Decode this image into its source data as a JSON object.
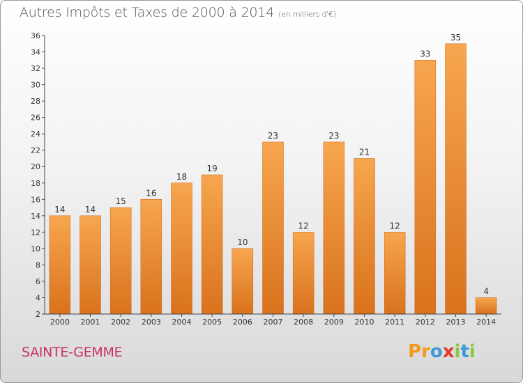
{
  "header": {
    "title": "Autres Impôts et Taxes de 2000 à 2014",
    "unit": "(en milliers d'€)"
  },
  "footer": {
    "city": "SAINTE-GEMME",
    "logo_text": "Proxiti"
  },
  "colors": {
    "bar_light": "#f7a64f",
    "bar_dark": "#d9721c",
    "city_text": "#c8325f",
    "logo": [
      "#f29a1f",
      "#f29a1f",
      "#3a9ad9",
      "#e23a2a",
      "#8cc63e",
      "#3a9ad9",
      "#8cc63e"
    ]
  },
  "chart_data": {
    "type": "bar",
    "title": "Autres Impôts et Taxes de 2000 à 2014",
    "xlabel": "",
    "ylabel": "",
    "ylim": [
      2,
      36
    ],
    "yticks": [
      2,
      4,
      6,
      8,
      10,
      12,
      14,
      16,
      18,
      20,
      22,
      24,
      26,
      28,
      30,
      32,
      34,
      36
    ],
    "grid": false,
    "categories": [
      "2000",
      "2001",
      "2002",
      "2003",
      "2004",
      "2005",
      "2006",
      "2007",
      "2008",
      "2009",
      "2010",
      "2011",
      "2012",
      "2013",
      "2014"
    ],
    "values": [
      14,
      14,
      15,
      16,
      18,
      19,
      10,
      23,
      12,
      23,
      21,
      12,
      33,
      35,
      4
    ]
  }
}
